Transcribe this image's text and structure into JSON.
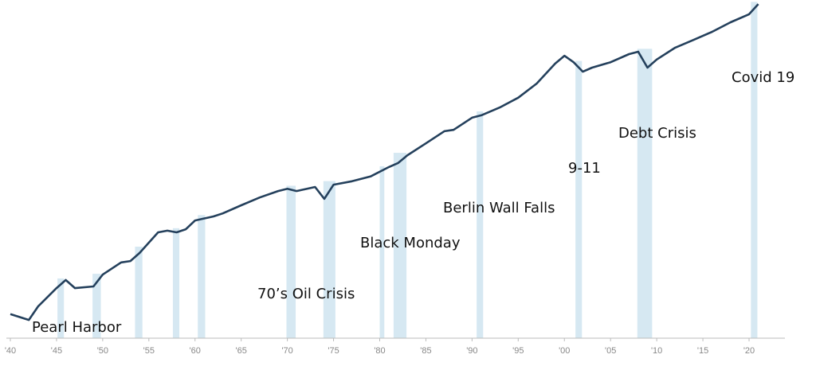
{
  "chart_data": {
    "type": "line",
    "x": [
      1940,
      1942,
      1943,
      1945,
      1946,
      1947,
      1949,
      1950,
      1952,
      1953,
      1954,
      1956,
      1957,
      1958,
      1959,
      1960,
      1962,
      1963,
      1965,
      1967,
      1969,
      1970,
      1971,
      1973,
      1974,
      1975,
      1977,
      1979,
      1981,
      1982,
      1983,
      1985,
      1987,
      1988,
      1990,
      1991,
      1993,
      1995,
      1997,
      1999,
      2000,
      2001,
      2002,
      2003,
      2005,
      2007,
      2008,
      2009,
      2010,
      2012,
      2014,
      2016,
      2018,
      2020,
      2021
    ],
    "series": [
      {
        "color": "#24405c",
        "values": [
          7.1,
          5.4,
          9.4,
          14.8,
          17.2,
          14.8,
          15.3,
          18.8,
          22.4,
          22.8,
          25.2,
          31.3,
          31.8,
          31.3,
          32.2,
          34.8,
          36.0,
          36.9,
          39.3,
          41.6,
          43.5,
          44.2,
          43.5,
          44.7,
          41.2,
          45.4,
          46.4,
          47.8,
          50.6,
          51.8,
          54.1,
          57.6,
          61.2,
          61.6,
          65.2,
          65.9,
          68.2,
          71.1,
          75.3,
          81.2,
          83.5,
          81.6,
          78.8,
          80.0,
          81.6,
          84.0,
          84.7,
          80.0,
          82.4,
          85.9,
          88.2,
          90.6,
          93.4,
          95.8,
          98.8
        ]
      }
    ],
    "shaded_periods": [
      [
        1945.1,
        1945.8
      ],
      [
        1948.9,
        1949.8
      ],
      [
        1953.5,
        1954.3
      ],
      [
        1957.6,
        1958.3
      ],
      [
        1960.3,
        1961.1
      ],
      [
        1969.9,
        1970.9
      ],
      [
        1973.9,
        1975.2
      ],
      [
        1980.0,
        1980.5
      ],
      [
        1981.5,
        1982.9
      ],
      [
        1990.5,
        1991.2
      ],
      [
        2001.2,
        2001.9
      ],
      [
        2007.9,
        2009.5
      ],
      [
        2020.2,
        2020.9
      ]
    ],
    "shade_color": "#d6e8f2",
    "annotations": [
      "Pearl Harbor",
      "70’s Oil Crisis",
      "Black Monday",
      "Berlin Wall Falls",
      "9-11",
      "Debt Crisis",
      "Covid 19"
    ],
    "xlim": [
      1940,
      2020
    ],
    "ylim": [
      0,
      100
    ],
    "xticks": [
      {
        "value": 1940,
        "label": "'40"
      },
      {
        "value": 1945,
        "label": "'45"
      },
      {
        "value": 1950,
        "label": "'50"
      },
      {
        "value": 1955,
        "label": "'55"
      },
      {
        "value": 1960,
        "label": "'60"
      },
      {
        "value": 1965,
        "label": "'65"
      },
      {
        "value": 1970,
        "label": "'70"
      },
      {
        "value": 1975,
        "label": "'75"
      },
      {
        "value": 1980,
        "label": "'80"
      },
      {
        "value": 1985,
        "label": "'85"
      },
      {
        "value": 1990,
        "label": "'90"
      },
      {
        "value": 1995,
        "label": "'95"
      },
      {
        "value": 2000,
        "label": "'00"
      },
      {
        "value": 2005,
        "label": "'05"
      },
      {
        "value": 2010,
        "label": "'10"
      },
      {
        "value": 2015,
        "label": "'15"
      },
      {
        "value": 2020,
        "label": "'20"
      }
    ]
  }
}
